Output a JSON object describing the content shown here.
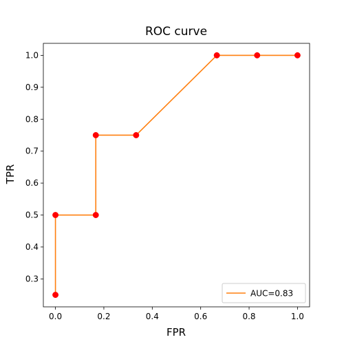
{
  "chart_data": {
    "type": "line",
    "title": "ROC curve",
    "xlabel": "FPR",
    "ylabel": "TPR",
    "xlim": [
      -0.05,
      1.05
    ],
    "ylim": [
      0.2125,
      1.0375
    ],
    "xticks": [
      0.0,
      0.2,
      0.4,
      0.6,
      0.8,
      1.0
    ],
    "xtick_labels": [
      "0.0",
      "0.2",
      "0.4",
      "0.6",
      "0.8",
      "1.0"
    ],
    "yticks": [
      0.3,
      0.4,
      0.5,
      0.6,
      0.7,
      0.8,
      0.9,
      1.0
    ],
    "ytick_labels": [
      "0.3",
      "0.4",
      "0.5",
      "0.6",
      "0.7",
      "0.8",
      "0.9",
      "1.0"
    ],
    "grid": false,
    "legend": {
      "placement": "lower-right",
      "entries": [
        "AUC=0.83"
      ]
    },
    "series": [
      {
        "name": "AUC=0.83",
        "style": "line",
        "color": "#ff7f0e",
        "x": [
          0.0,
          0.0,
          0.1667,
          0.1667,
          0.3333,
          0.6667,
          0.8333,
          1.0
        ],
        "y": [
          0.25,
          0.5,
          0.5,
          0.75,
          0.75,
          1.0,
          1.0,
          1.0
        ]
      },
      {
        "style": "markers",
        "color": "#ff0000",
        "x": [
          0.0,
          0.0,
          0.1667,
          0.1667,
          0.3333,
          0.6667,
          0.8333,
          1.0
        ],
        "y": [
          0.25,
          0.5,
          0.5,
          0.75,
          0.75,
          1.0,
          1.0,
          1.0
        ]
      }
    ]
  }
}
